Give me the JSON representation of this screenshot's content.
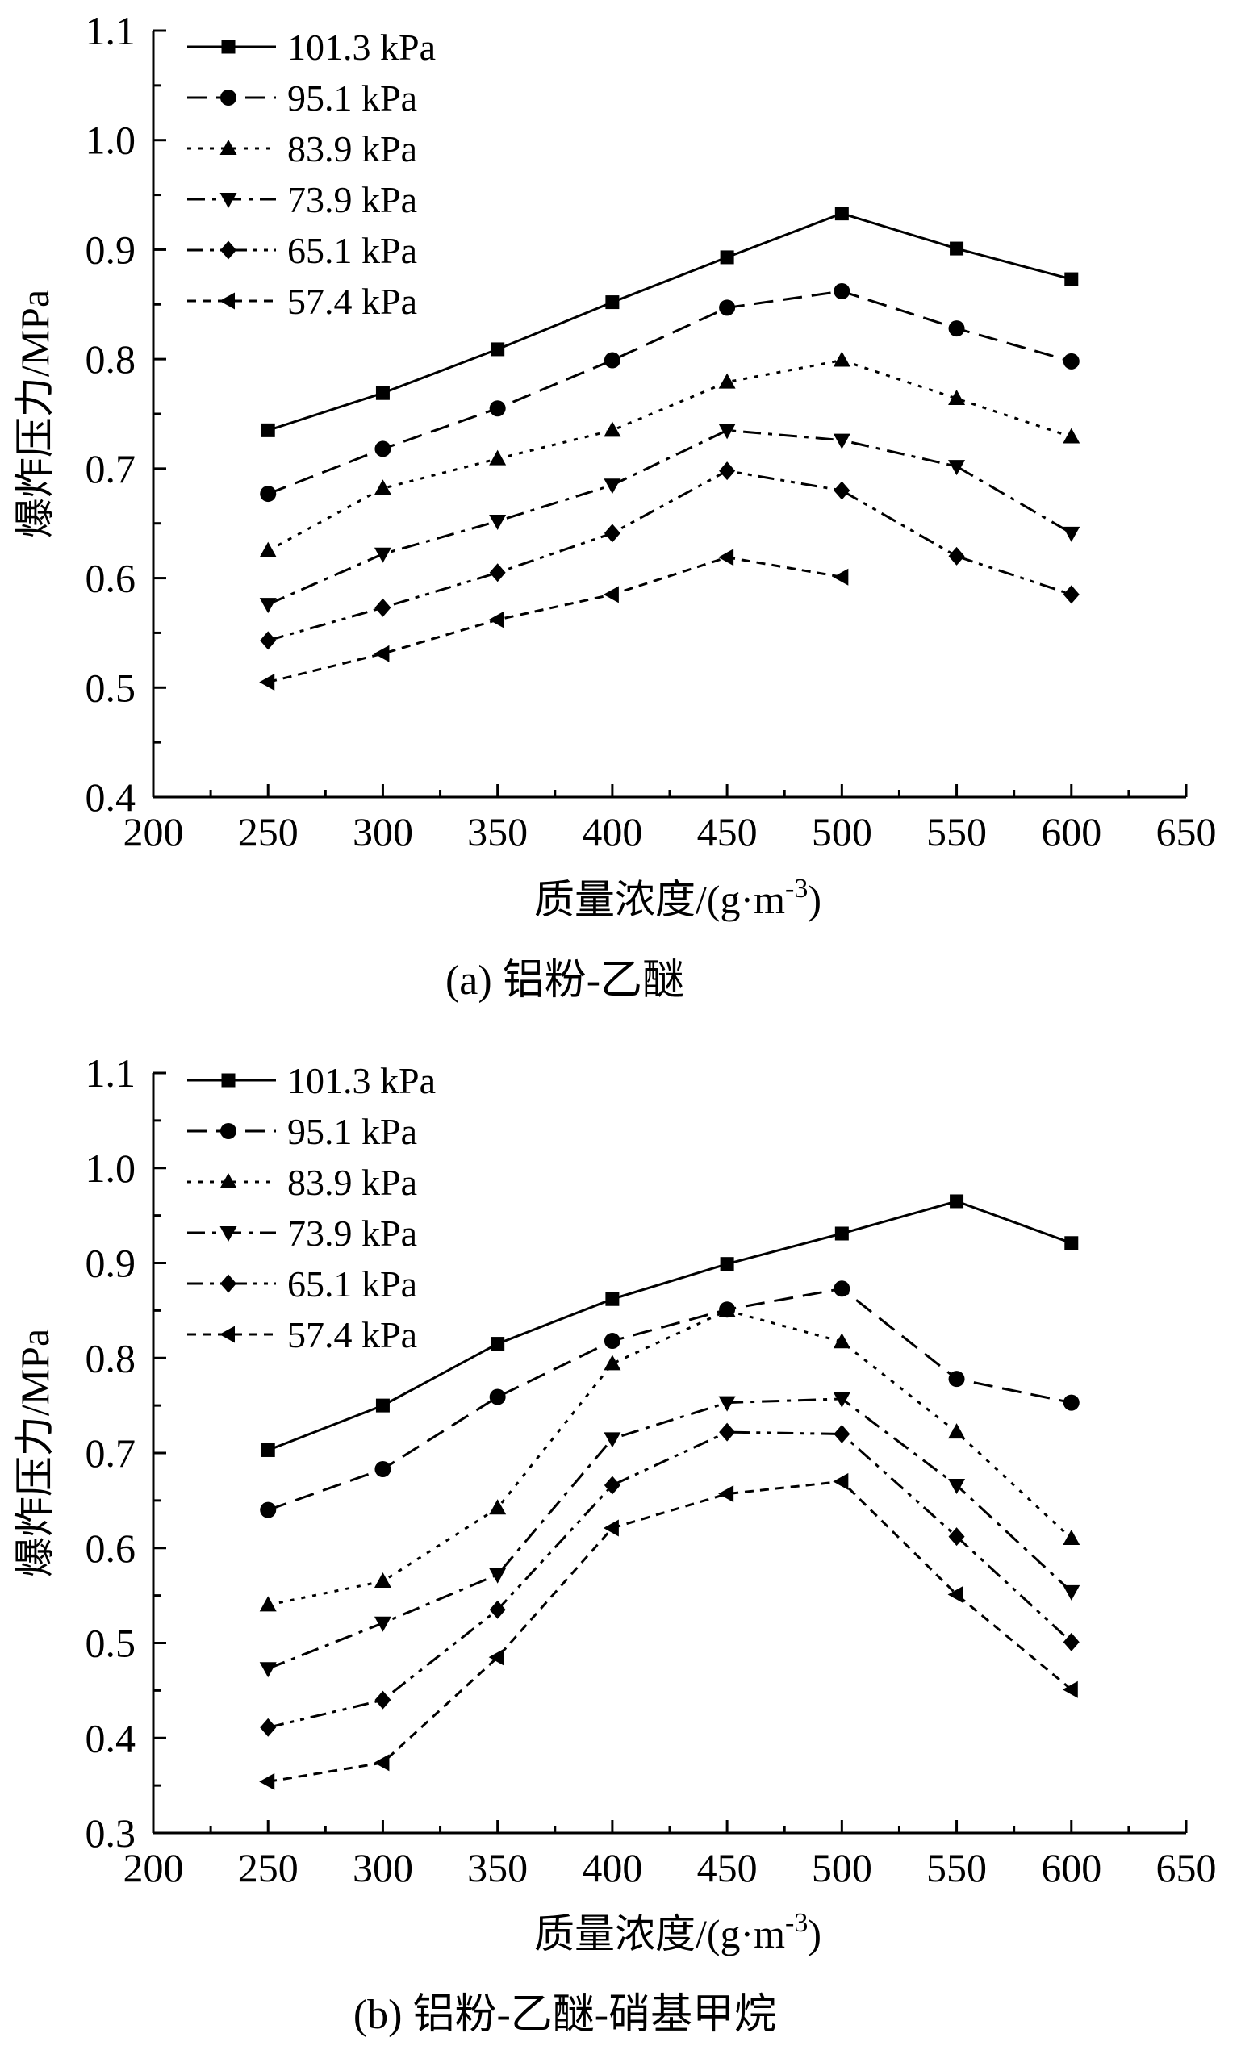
{
  "figure": {
    "charts": [
      {
        "id": "a",
        "caption": "(a) 铝粉-乙醚",
        "xlabel": "质量浓度/(g·m",
        "xlabel_sup": "-3",
        "xlabel_close": ")",
        "ylabel": "爆炸压力/MPa"
      },
      {
        "id": "b",
        "caption": "(b) 铝粉-乙醚-硝基甲烷",
        "xlabel": "质量浓度/(g·m",
        "xlabel_sup": "-3",
        "xlabel_close": ")",
        "ylabel": "爆炸压力/MPa"
      }
    ]
  },
  "chart_data": [
    {
      "type": "line",
      "title": "",
      "xlabel": "质量浓度/(g·m-3)",
      "ylabel": "爆炸压力/MPa",
      "xlim": [
        200,
        650
      ],
      "ylim": [
        0.4,
        1.1
      ],
      "xticks": [
        "200",
        "250",
        "300",
        "350",
        "400",
        "450",
        "500",
        "550",
        "600",
        "650"
      ],
      "yticks": [
        "0.4",
        "0.5",
        "0.6",
        "0.7",
        "0.8",
        "0.9",
        "1.0",
        "1.1"
      ],
      "legend_position": "top-left",
      "grid": false,
      "series": [
        {
          "name": "101.3 kPa",
          "marker": "square",
          "dash": "solid",
          "x": [
            250,
            300,
            350,
            400,
            450,
            500,
            550,
            600
          ],
          "y": [
            0.735,
            0.769,
            0.809,
            0.852,
            0.893,
            0.933,
            0.901,
            0.873
          ]
        },
        {
          "name": "95.1 kPa",
          "marker": "circle",
          "dash": "dash",
          "x": [
            250,
            300,
            350,
            400,
            450,
            500,
            550,
            600
          ],
          "y": [
            0.677,
            0.718,
            0.755,
            0.799,
            0.847,
            0.862,
            0.828,
            0.798
          ]
        },
        {
          "name": "83.9 kPa",
          "marker": "triangle-up",
          "dash": "dot",
          "x": [
            250,
            300,
            350,
            400,
            450,
            500,
            550,
            600
          ],
          "y": [
            0.625,
            0.682,
            0.709,
            0.735,
            0.779,
            0.799,
            0.764,
            0.729
          ]
        },
        {
          "name": "73.9 kPa",
          "marker": "triangle-down",
          "dash": "dashdot",
          "x": [
            250,
            300,
            350,
            400,
            450,
            500,
            550,
            600
          ],
          "y": [
            0.576,
            0.622,
            0.652,
            0.685,
            0.735,
            0.726,
            0.702,
            0.641
          ]
        },
        {
          "name": "65.1 kPa",
          "marker": "diamond",
          "dash": "dashdotdot",
          "x": [
            250,
            300,
            350,
            400,
            450,
            500,
            550,
            600
          ],
          "y": [
            0.543,
            0.573,
            0.605,
            0.641,
            0.698,
            0.68,
            0.62,
            0.585
          ]
        },
        {
          "name": "57.4 kPa",
          "marker": "triangle-left",
          "dash": "shortdash",
          "x": [
            250,
            300,
            350,
            400,
            450,
            500
          ],
          "y": [
            0.505,
            0.531,
            0.562,
            0.585,
            0.619,
            0.601
          ]
        }
      ]
    },
    {
      "type": "line",
      "title": "",
      "xlabel": "质量浓度/(g·m-3)",
      "ylabel": "爆炸压力/MPa",
      "xlim": [
        200,
        650
      ],
      "ylim": [
        0.3,
        1.1
      ],
      "xticks": [
        "200",
        "250",
        "300",
        "350",
        "400",
        "450",
        "500",
        "550",
        "600",
        "650"
      ],
      "yticks": [
        "0.3",
        "0.4",
        "0.5",
        "0.6",
        "0.7",
        "0.8",
        "0.9",
        "1.0",
        "1.1"
      ],
      "legend_position": "top-left",
      "grid": false,
      "series": [
        {
          "name": "101.3 kPa",
          "marker": "square",
          "dash": "solid",
          "x": [
            250,
            300,
            350,
            400,
            450,
            500,
            550,
            600
          ],
          "y": [
            0.703,
            0.75,
            0.815,
            0.862,
            0.899,
            0.931,
            0.965,
            0.921
          ]
        },
        {
          "name": "95.1 kPa",
          "marker": "circle",
          "dash": "dash",
          "x": [
            250,
            300,
            350,
            400,
            450,
            500,
            550,
            600
          ],
          "y": [
            0.64,
            0.683,
            0.759,
            0.818,
            0.851,
            0.873,
            0.778,
            0.753
          ]
        },
        {
          "name": "83.9 kPa",
          "marker": "triangle-up",
          "dash": "dot",
          "x": [
            250,
            300,
            350,
            400,
            450,
            500,
            550,
            600
          ],
          "y": [
            0.54,
            0.565,
            0.642,
            0.794,
            0.85,
            0.817,
            0.722,
            0.61
          ]
        },
        {
          "name": "73.9 kPa",
          "marker": "triangle-down",
          "dash": "dashdot",
          "x": [
            250,
            300,
            350,
            400,
            450,
            500,
            550,
            600
          ],
          "y": [
            0.473,
            0.521,
            0.572,
            0.715,
            0.753,
            0.757,
            0.666,
            0.554
          ]
        },
        {
          "name": "65.1 kPa",
          "marker": "diamond",
          "dash": "dashdotdot",
          "x": [
            250,
            300,
            350,
            400,
            450,
            500,
            550,
            600
          ],
          "y": [
            0.411,
            0.44,
            0.535,
            0.666,
            0.722,
            0.72,
            0.612,
            0.501
          ]
        },
        {
          "name": "57.4 kPa",
          "marker": "triangle-left",
          "dash": "shortdash",
          "x": [
            250,
            300,
            350,
            400,
            450,
            500,
            550,
            600
          ],
          "y": [
            0.354,
            0.374,
            0.485,
            0.621,
            0.657,
            0.67,
            0.551,
            0.451
          ]
        }
      ]
    }
  ]
}
